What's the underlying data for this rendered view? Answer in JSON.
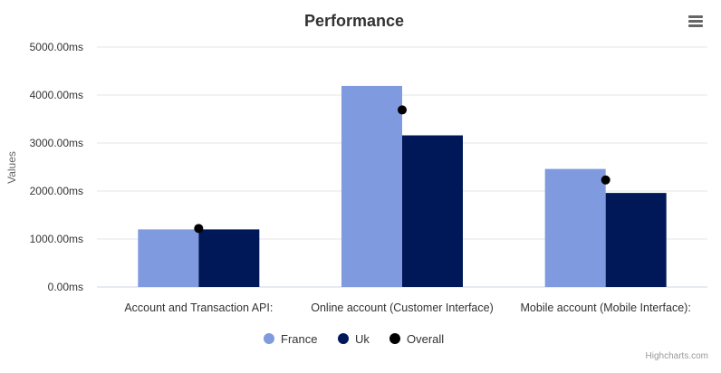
{
  "colors": {
    "france": "#7f9ade",
    "uk": "#001858",
    "overall": "#000000",
    "grid": "#e6e6e6",
    "axis_text": "#333333",
    "title": "#333333"
  },
  "menu": {
    "icon": "hamburger-icon"
  },
  "credits": "Highcharts.com",
  "chart_data": {
    "type": "bar",
    "title": "Performance",
    "xlabel": "",
    "ylabel": "Values",
    "ylim": [
      0,
      5000
    ],
    "y_ticks": [
      "0.00ms",
      "1000.00ms",
      "2000.00ms",
      "3000.00ms",
      "4000.00ms",
      "5000.00ms"
    ],
    "y_tick_values": [
      0,
      1000,
      2000,
      3000,
      4000,
      5000
    ],
    "categories": [
      "Account and Transaction API:",
      "Online account (Customer Interface)",
      "Mobile account (Mobile Interface):"
    ],
    "series": [
      {
        "name": "France",
        "kind": "bar",
        "values": [
          1200,
          4190,
          2460
        ]
      },
      {
        "name": "Uk",
        "kind": "bar",
        "values": [
          1200,
          3160,
          1960
        ]
      },
      {
        "name": "Overall",
        "kind": "scatter",
        "values": [
          1220,
          3690,
          2230
        ]
      }
    ],
    "grid": true,
    "legend_position": "bottom-center"
  }
}
